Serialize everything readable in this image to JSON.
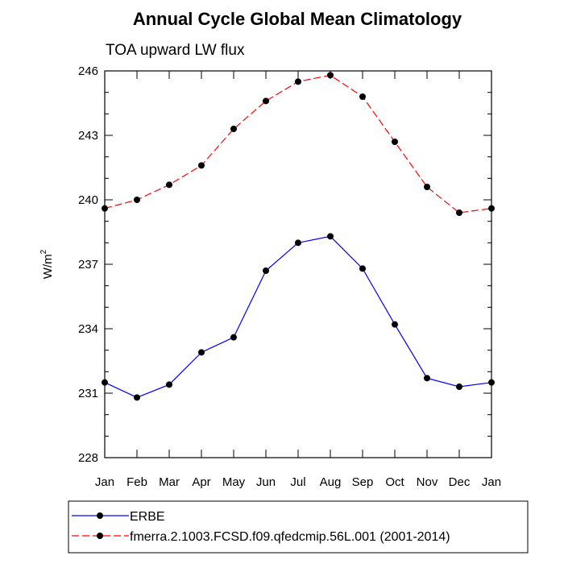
{
  "chart_data": {
    "type": "line",
    "title": "Annual Cycle Global Mean Climatology",
    "subtitle": "TOA upward LW flux",
    "ylabel": "W/m",
    "ylabel_superscript": "2",
    "categories": [
      "Jan",
      "Feb",
      "Mar",
      "Apr",
      "May",
      "Jun",
      "Jul",
      "Aug",
      "Sep",
      "Oct",
      "Nov",
      "Dec",
      "Jan"
    ],
    "yticks": [
      228,
      231,
      234,
      237,
      240,
      243,
      246
    ],
    "ylim": [
      228,
      246
    ],
    "grid": false,
    "legend_position": "bottom",
    "series": [
      {
        "name": "ERBE",
        "color": "#0000ff",
        "line_style": "solid",
        "marker": "filled-circle",
        "values": [
          231.5,
          230.8,
          231.4,
          232.9,
          233.6,
          236.7,
          238.0,
          238.3,
          236.8,
          234.2,
          231.7,
          231.3,
          231.5
        ]
      },
      {
        "name": "fmerra.2.1003.FCSD.f09.qfedcmip.56L.001 (2001-2014)",
        "color": "#ff0000",
        "line_style": "dashed",
        "marker": "filled-circle",
        "values": [
          239.6,
          240.0,
          240.7,
          241.6,
          243.3,
          244.6,
          245.5,
          245.8,
          244.8,
          242.7,
          240.6,
          239.4,
          239.6
        ]
      }
    ]
  }
}
